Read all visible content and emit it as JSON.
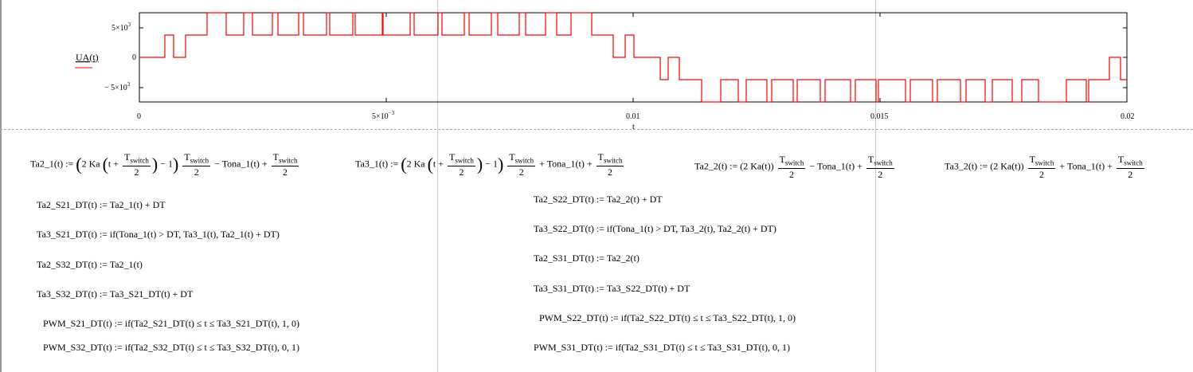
{
  "plot": {
    "y_label": "UA(t)",
    "x_tick_labels": [
      "0",
      "5×10",
      "0.01",
      "0.015",
      "0.02"
    ],
    "x_tick_exponent": "−3",
    "y_tick_labels": [
      "5×10",
      "0",
      "− 5×10"
    ],
    "y_tick_exponent": "3",
    "x_var": "t",
    "trace_color": "#ff0000"
  },
  "chart_data": {
    "type": "line",
    "xlim": [
      0,
      0.02
    ],
    "ylim": [
      -6000,
      6000
    ],
    "grid": false,
    "series": [
      {
        "x_unit": "s",
        "step_values": [
          0,
          2000,
          4000,
          6000,
          -2000,
          -4000,
          -6000
        ]
      }
    ]
  },
  "equations": {
    "ta2_1": {
      "lhs": "Ta2_1(t) :=",
      "a": "2 Ka",
      "b": "t +",
      "tsw": "T",
      "tsw_sub": "switch",
      "two": "2",
      "m1": "− 1",
      "rest": "− Tona_1(t) +"
    },
    "ta3_1": {
      "lhs": "Ta3_1(t) :=",
      "rest": "+ Tona_1(t) +"
    },
    "ta2_2": {
      "lhs": "Ta2_2(t) :=",
      "mid": "(2 Ka(t))",
      "rest": "− Tona_1(t) +"
    },
    "ta3_2": {
      "lhs": "Ta3_2(t) :=",
      "mid": "(2 Ka(t))",
      "rest": "+ Tona_1(t) +"
    },
    "left": [
      "Ta2_S21_DT(t) := Ta2_1(t) + DT",
      "Ta3_S21_DT(t) := if(Tona_1(t) > DT, Ta3_1(t), Ta2_1(t) + DT)",
      "Ta2_S32_DT(t) := Ta2_1(t)",
      "Ta3_S32_DT(t) := Ta3_S21_DT(t) + DT",
      "PWM_S21_DT(t) := if(Ta2_S21_DT(t) ≤ t ≤ Ta3_S21_DT(t), 1, 0)",
      "PWM_S32_DT(t) := if(Ta2_S32_DT(t) ≤ t ≤ Ta3_S32_DT(t), 0, 1)"
    ],
    "right": [
      "Ta2_S22_DT(t) := Ta2_2(t) + DT",
      "Ta3_S22_DT(t) := if(Tona_1(t) > DT, Ta3_2(t), Ta2_2(t) + DT)",
      "Ta2_S31_DT(t) := Ta2_2(t)",
      "Ta3_S31_DT(t) := Ta3_S22_DT(t) + DT",
      "PWM_S22_DT(t) := if(Ta2_S22_DT(t) ≤ t ≤ Ta3_S22_DT(t), 1, 0)",
      "PWM_S31_DT(t) := if(Ta2_S31_DT(t) ≤ t ≤ Ta3_S31_DT(t), 0, 1)"
    ]
  }
}
